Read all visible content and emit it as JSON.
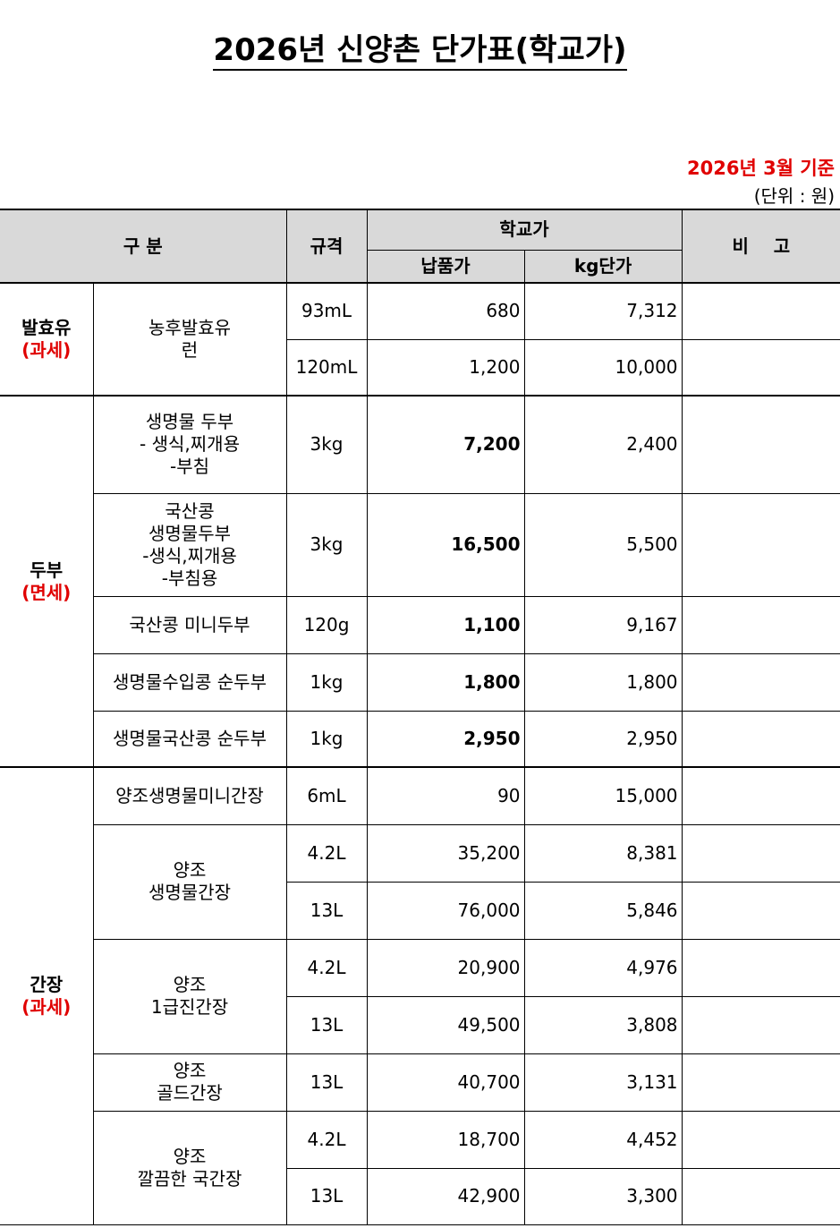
{
  "title": "2026년 신양촌 단가표(학교가)",
  "date_basis": "2026년  3월 기준",
  "unit_note": "(단위 : 원)",
  "header": {
    "category": "구 분",
    "spec": "규격",
    "school_price": "학교가",
    "delivery_price": "납품가",
    "kg_price": "kg단가",
    "remarks": "비    고"
  },
  "groups": [
    {
      "name": "발효유",
      "tax": "(과세)",
      "items": [
        {
          "name": "농후발효유\n런",
          "rows": [
            {
              "spec": "93mL",
              "price": "680",
              "kg": "7,312",
              "bold": false
            },
            {
              "spec": "120mL",
              "price": "1,200",
              "kg": "10,000",
              "bold": false
            }
          ]
        }
      ]
    },
    {
      "name": "두부",
      "tax": "(면세)",
      "items": [
        {
          "name": "생명물 두부\n- 생식,찌개용\n-부침",
          "rows": [
            {
              "spec": "3kg",
              "price": "7,200",
              "kg": "2,400",
              "bold": true
            }
          ]
        },
        {
          "name": "국산콩\n생명물두부\n-생식,찌개용\n-부침용",
          "rows": [
            {
              "spec": "3kg",
              "price": "16,500",
              "kg": "5,500",
              "bold": true
            }
          ]
        },
        {
          "name": "국산콩 미니두부",
          "rows": [
            {
              "spec": "120g",
              "price": "1,100",
              "kg": "9,167",
              "bold": true
            }
          ]
        },
        {
          "name": "생명물수입콩 순두부",
          "rows": [
            {
              "spec": "1kg",
              "price": "1,800",
              "kg": "1,800",
              "bold": true
            }
          ]
        },
        {
          "name": "생명물국산콩 순두부",
          "rows": [
            {
              "spec": "1kg",
              "price": "2,950",
              "kg": "2,950",
              "bold": true
            }
          ]
        }
      ]
    },
    {
      "name": "간장",
      "tax": "(과세)",
      "items": [
        {
          "name": "양조생명물미니간장",
          "rows": [
            {
              "spec": "6mL",
              "price": "90",
              "kg": "15,000",
              "bold": false
            }
          ]
        },
        {
          "name": "양조\n생명물간장",
          "rows": [
            {
              "spec": "4.2L",
              "price": "35,200",
              "kg": "8,381",
              "bold": false
            },
            {
              "spec": "13L",
              "price": "76,000",
              "kg": "5,846",
              "bold": false
            }
          ]
        },
        {
          "name": "양조\n1급진간장",
          "rows": [
            {
              "spec": "4.2L",
              "price": "20,900",
              "kg": "4,976",
              "bold": false
            },
            {
              "spec": "13L",
              "price": "49,500",
              "kg": "3,808",
              "bold": false
            }
          ]
        },
        {
          "name": "양조\n골드간장",
          "rows": [
            {
              "spec": "13L",
              "price": "40,700",
              "kg": "3,131",
              "bold": false
            }
          ]
        },
        {
          "name": "양조\n깔끔한 국간장",
          "rows": [
            {
              "spec": "4.2L",
              "price": "18,700",
              "kg": "4,452",
              "bold": false
            },
            {
              "spec": "13L",
              "price": "42,900",
              "kg": "3,300",
              "bold": false
            }
          ]
        }
      ]
    }
  ]
}
